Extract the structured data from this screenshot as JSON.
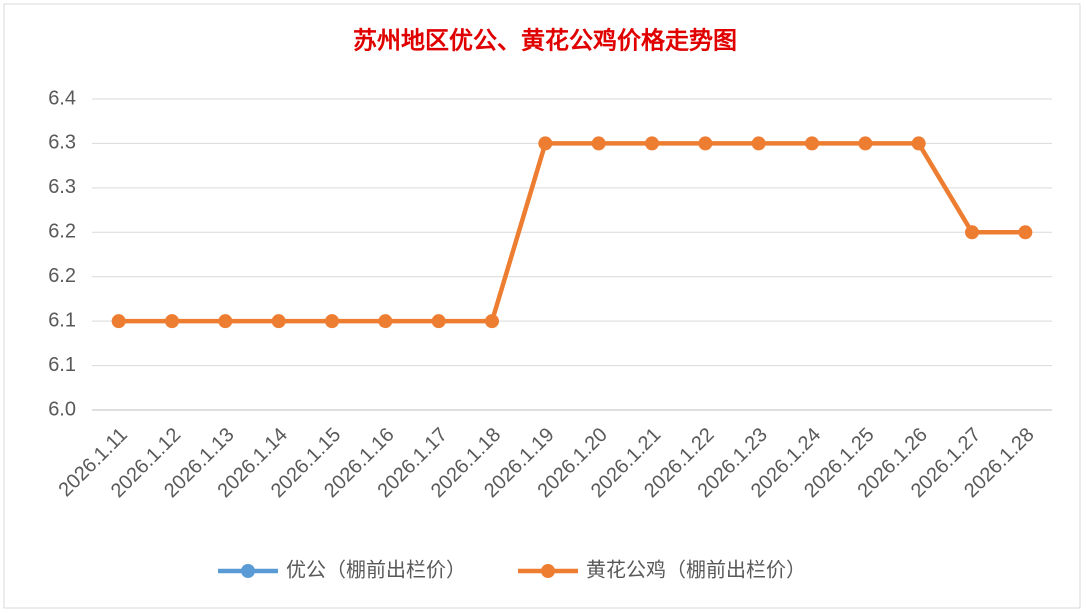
{
  "chart_data": {
    "type": "line",
    "title": "苏州地区优公、黄花公鸡价格走势图",
    "categories": [
      "2026.1.11",
      "2026.1.12",
      "2026.1.13",
      "2026.1.14",
      "2026.1.15",
      "2026.1.16",
      "2026.1.17",
      "2026.1.18",
      "2026.1.19",
      "2026.1.20",
      "2026.1.21",
      "2026.1.22",
      "2026.1.23",
      "2026.1.24",
      "2026.1.25",
      "2026.1.26",
      "2026.1.27",
      "2026.1.28"
    ],
    "series": [
      {
        "name": "优公（棚前出栏价）",
        "color": "#5b9bd5",
        "values": [
          null,
          null,
          null,
          null,
          null,
          null,
          null,
          null,
          null,
          null,
          null,
          null,
          null,
          null,
          null,
          null,
          null,
          null
        ]
      },
      {
        "name": "黄花公鸡（棚前出栏价）",
        "color": "#ed7d31",
        "values": [
          6.1,
          6.1,
          6.1,
          6.1,
          6.1,
          6.1,
          6.1,
          6.1,
          6.3,
          6.3,
          6.3,
          6.3,
          6.3,
          6.3,
          6.3,
          6.3,
          6.2,
          6.2
        ]
      }
    ],
    "ylim": [
      6.0,
      6.35
    ],
    "yticks": [
      {
        "value": 6.0,
        "label": "6.0"
      },
      {
        "value": 6.05,
        "label": "6.1"
      },
      6.1,
      {
        "value": 6.15,
        "label": "6.2"
      },
      6.2,
      {
        "value": 6.25,
        "label": "6.3"
      },
      6.3,
      {
        "value": 6.35,
        "label": "6.4"
      }
    ],
    "grid": true,
    "legend": "bottom"
  }
}
